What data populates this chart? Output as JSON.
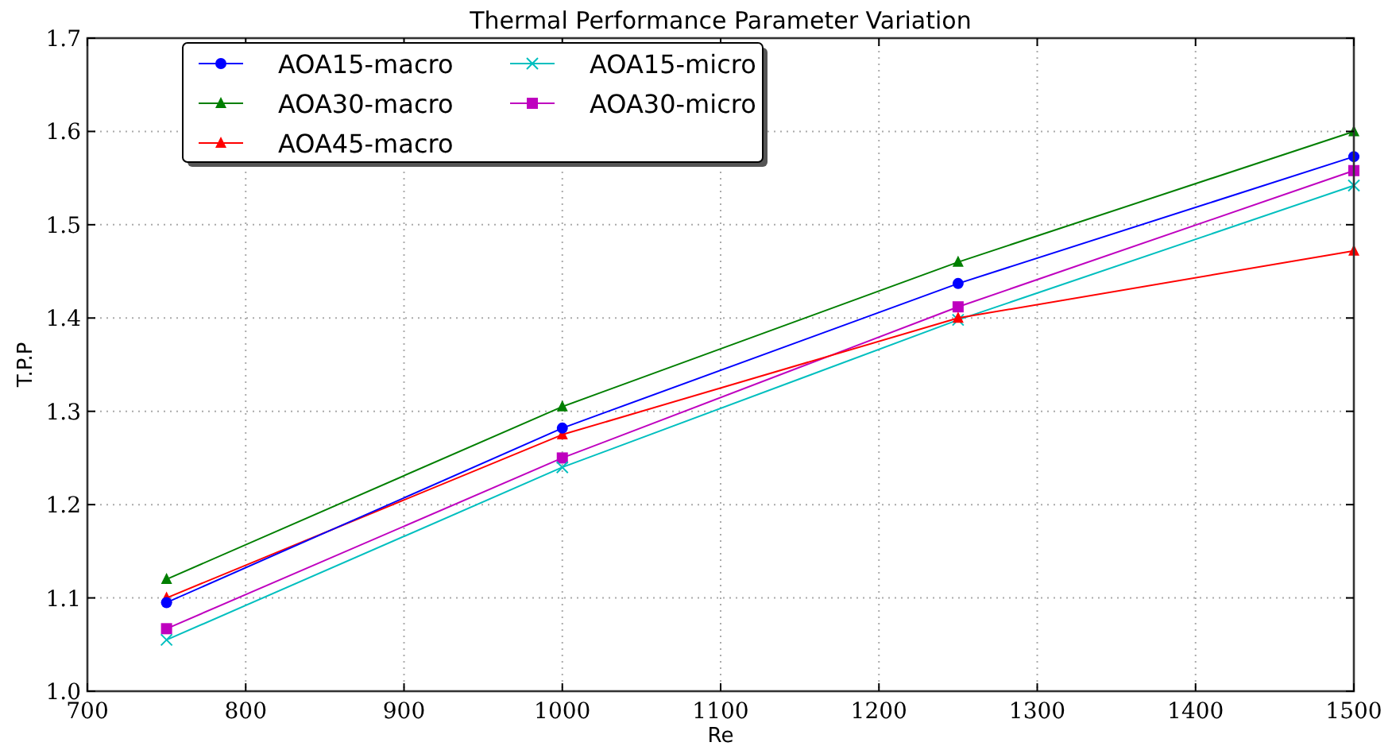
{
  "chart_data": {
    "type": "line",
    "title": "Thermal Performance Parameter Variation",
    "xlabel": "Re",
    "ylabel": "T.P.P",
    "x": [
      750,
      1000,
      1250,
      1500
    ],
    "series": [
      {
        "name": "AOA15-macro",
        "color": "#0000ff",
        "marker": "circle",
        "values": [
          1.095,
          1.282,
          1.437,
          1.573
        ]
      },
      {
        "name": "AOA30-macro",
        "color": "#007f00",
        "marker": "triangle",
        "values": [
          1.12,
          1.305,
          1.46,
          1.6
        ]
      },
      {
        "name": "AOA45-macro",
        "color": "#ff0000",
        "marker": "triangle",
        "values": [
          1.1,
          1.275,
          1.4,
          1.472
        ]
      },
      {
        "name": "AOA15-micro",
        "color": "#00bfbf",
        "marker": "cross",
        "values": [
          1.055,
          1.24,
          1.398,
          1.542
        ]
      },
      {
        "name": "AOA30-micro",
        "color": "#bf00bf",
        "marker": "square",
        "values": [
          1.067,
          1.25,
          1.412,
          1.558
        ]
      }
    ],
    "xlim": [
      700,
      1500
    ],
    "xticks": [
      700,
      800,
      900,
      1000,
      1100,
      1200,
      1300,
      1400,
      1500
    ],
    "ylim": [
      1.0,
      1.7
    ],
    "yticks": [
      {
        "value": 1.0,
        "label": "1.0"
      },
      1.1,
      1.2,
      1.3,
      1.4,
      1.5,
      1.6,
      1.7
    ],
    "grid": true,
    "legend": "top left",
    "line_style": "solid"
  }
}
